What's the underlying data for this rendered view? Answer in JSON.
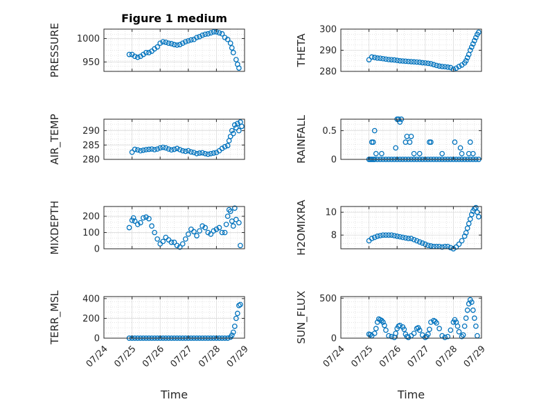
{
  "colors": {
    "marker": "#0072BD",
    "grid": "#d9d9d9",
    "axis": "#262626"
  },
  "chart_data": [
    {
      "type": "scatter",
      "title": "Figure 1 medium",
      "ylabel": "PRESSURE",
      "ylim": [
        930,
        1020
      ],
      "yticks": [
        950,
        1000
      ],
      "xticks": [
        "07/24",
        "07/25",
        "07/26",
        "07/27",
        "07/28",
        "07/29"
      ],
      "xlim": [
        24,
        29
      ],
      "xlabel": "",
      "series": [
        {
          "x": [
            24.9,
            25.0,
            25.1,
            25.2,
            25.3,
            25.4,
            25.5,
            25.6,
            25.7,
            25.8,
            25.9,
            26.0,
            26.1,
            26.2,
            26.3,
            26.4,
            26.5,
            26.6,
            26.7,
            26.8,
            26.9,
            27.0,
            27.1,
            27.2,
            27.3,
            27.4,
            27.5,
            27.6,
            27.7,
            27.8,
            27.9,
            28.0,
            28.1,
            28.2,
            28.3,
            28.4,
            28.5,
            28.55,
            28.6,
            28.7,
            28.75,
            28.8
          ],
          "y": [
            966,
            966,
            962,
            960,
            962,
            966,
            970,
            970,
            973,
            978,
            982,
            990,
            993,
            992,
            990,
            989,
            987,
            986,
            987,
            990,
            993,
            995,
            997,
            998,
            1002,
            1004,
            1007,
            1009,
            1010,
            1012,
            1014,
            1014,
            1012,
            1010,
            1002,
            998,
            990,
            980,
            970,
            955,
            945,
            937
          ]
        }
      ]
    },
    {
      "type": "scatter",
      "title": "",
      "ylabel": "THETA",
      "ylim": [
        280,
        300
      ],
      "yticks": [
        280,
        290,
        300
      ],
      "xticks": [
        "07/24",
        "07/25",
        "07/26",
        "07/27",
        "07/28",
        "07/29"
      ],
      "xlim": [
        24,
        29
      ],
      "xlabel": "",
      "series": [
        {
          "x": [
            25.0,
            25.1,
            25.2,
            25.3,
            25.4,
            25.5,
            25.6,
            25.7,
            25.8,
            25.9,
            26.0,
            26.1,
            26.2,
            26.3,
            26.4,
            26.5,
            26.6,
            26.7,
            26.8,
            26.9,
            27.0,
            27.1,
            27.2,
            27.3,
            27.4,
            27.5,
            27.6,
            27.7,
            27.8,
            27.9,
            28.0,
            28.1,
            28.2,
            28.3,
            28.4,
            28.45,
            28.5,
            28.55,
            28.6,
            28.65,
            28.7,
            28.75,
            28.8,
            28.85,
            28.9
          ],
          "y": [
            285.5,
            286.8,
            286.6,
            286.3,
            286.2,
            286.0,
            285.8,
            285.6,
            285.5,
            285.4,
            285.2,
            285.0,
            284.9,
            284.8,
            284.7,
            284.6,
            284.5,
            284.4,
            284.3,
            284.1,
            284.0,
            283.8,
            283.6,
            283.2,
            282.8,
            282.5,
            282.3,
            282.2,
            282.0,
            281.8,
            281.0,
            281.5,
            282.3,
            283.0,
            284.0,
            285.0,
            286.5,
            288.0,
            290.0,
            291.5,
            293.0,
            294.5,
            296.0,
            297.5,
            298.5
          ]
        }
      ]
    },
    {
      "type": "scatter",
      "title": "",
      "ylabel": "AIR_TEMP",
      "ylim": [
        280,
        294
      ],
      "yticks": [
        280,
        285,
        290
      ],
      "xticks": [
        "07/24",
        "07/25",
        "07/26",
        "07/27",
        "07/28",
        "07/29"
      ],
      "xlim": [
        24,
        29
      ],
      "xlabel": "",
      "series": [
        {
          "x": [
            25.0,
            25.1,
            25.2,
            25.3,
            25.4,
            25.5,
            25.6,
            25.7,
            25.8,
            25.9,
            26.0,
            26.1,
            26.2,
            26.3,
            26.4,
            26.5,
            26.6,
            26.7,
            26.8,
            26.9,
            27.0,
            27.1,
            27.2,
            27.3,
            27.4,
            27.5,
            27.6,
            27.7,
            27.8,
            27.9,
            28.0,
            28.1,
            28.2,
            28.3,
            28.4,
            28.45,
            28.5,
            28.55,
            28.6,
            28.65,
            28.7,
            28.75,
            28.8,
            28.85,
            28.9
          ],
          "y": [
            282.5,
            283.5,
            283.3,
            283.0,
            283.2,
            283.4,
            283.5,
            283.6,
            283.4,
            283.6,
            284.0,
            284.2,
            284.0,
            283.6,
            283.3,
            283.5,
            283.8,
            283.4,
            283.0,
            282.8,
            283.0,
            282.6,
            282.4,
            282.0,
            282.2,
            282.3,
            282.0,
            281.8,
            282.0,
            282.2,
            282.4,
            283.0,
            283.8,
            284.4,
            284.8,
            286.5,
            288.0,
            290.0,
            289.0,
            292.0,
            291.0,
            292.5,
            290.0,
            293.0,
            291.5
          ]
        }
      ]
    },
    {
      "type": "scatter",
      "title": "",
      "ylabel": "RAINFALL",
      "ylim": [
        0,
        0.7
      ],
      "yticks": [
        0,
        0.5
      ],
      "xticks": [
        "07/24",
        "07/25",
        "07/26",
        "07/27",
        "07/28",
        "07/29"
      ],
      "xlim": [
        24,
        29
      ],
      "xlabel": "",
      "series": [
        {
          "x": [
            25.0,
            25.05,
            25.1,
            25.15,
            25.2,
            25.3,
            25.4,
            25.5,
            25.6,
            25.7,
            25.8,
            25.9,
            26.0,
            26.1,
            26.2,
            26.3,
            26.4,
            26.5,
            26.6,
            26.7,
            26.8,
            26.9,
            27.0,
            27.1,
            27.2,
            27.3,
            27.4,
            27.5,
            27.6,
            27.7,
            27.8,
            27.9,
            28.0,
            28.1,
            28.2,
            28.3,
            28.4,
            28.5,
            28.6,
            28.7,
            28.8,
            28.9,
            25.1,
            25.15,
            25.2,
            25.25,
            25.45,
            25.95,
            26.0,
            26.05,
            26.1,
            26.15,
            26.3,
            26.35,
            26.45,
            26.5,
            26.6,
            26.8,
            27.15,
            27.2,
            27.6,
            28.05,
            28.25,
            28.3,
            28.55,
            28.6,
            28.7
          ],
          "y": [
            0,
            0,
            0,
            0,
            0,
            0,
            0,
            0,
            0,
            0,
            0,
            0,
            0,
            0,
            0,
            0,
            0,
            0,
            0,
            0,
            0,
            0,
            0,
            0,
            0,
            0,
            0,
            0,
            0,
            0,
            0,
            0,
            0,
            0,
            0,
            0,
            0,
            0,
            0,
            0,
            0,
            0,
            0.3,
            0.3,
            0.5,
            0.1,
            0.1,
            0.2,
            0.7,
            0.7,
            0.65,
            0.7,
            0.3,
            0.4,
            0.3,
            0.4,
            0.1,
            0.1,
            0.3,
            0.3,
            0.1,
            0.3,
            0.2,
            0.1,
            0.1,
            0.3,
            0.1
          ]
        }
      ]
    },
    {
      "type": "scatter",
      "title": "",
      "ylabel": "MIXDEPTH",
      "ylim": [
        0,
        260
      ],
      "yticks": [
        0,
        100,
        200
      ],
      "xticks": [
        "07/24",
        "07/25",
        "07/26",
        "07/27",
        "07/28",
        "07/29"
      ],
      "xlim": [
        24,
        29
      ],
      "xlabel": "",
      "series": [
        {
          "x": [
            24.9,
            25.0,
            25.05,
            25.1,
            25.2,
            25.3,
            25.4,
            25.5,
            25.6,
            25.7,
            25.8,
            25.9,
            26.0,
            26.1,
            26.2,
            26.3,
            26.4,
            26.5,
            26.6,
            26.7,
            26.8,
            26.9,
            27.0,
            27.1,
            27.2,
            27.3,
            27.4,
            27.5,
            27.6,
            27.7,
            27.8,
            27.9,
            28.0,
            28.1,
            28.2,
            28.3,
            28.35,
            28.4,
            28.45,
            28.5,
            28.55,
            28.6,
            28.65,
            28.7,
            28.8,
            28.85
          ],
          "y": [
            130,
            175,
            190,
            170,
            150,
            160,
            190,
            195,
            185,
            140,
            100,
            60,
            30,
            45,
            70,
            55,
            40,
            40,
            20,
            10,
            30,
            60,
            90,
            120,
            105,
            80,
            110,
            140,
            130,
            100,
            90,
            110,
            120,
            130,
            100,
            100,
            150,
            200,
            240,
            230,
            170,
            140,
            250,
            180,
            160,
            20
          ]
        }
      ]
    },
    {
      "type": "scatter",
      "title": "",
      "ylabel": "H2OMIXRA",
      "ylim": [
        6.8,
        10.5
      ],
      "yticks": [
        8,
        10
      ],
      "xticks": [
        "07/24",
        "07/25",
        "07/26",
        "07/27",
        "07/28",
        "07/29"
      ],
      "xlim": [
        24,
        29
      ],
      "xlabel": "",
      "series": [
        {
          "x": [
            25.0,
            25.1,
            25.2,
            25.3,
            25.4,
            25.5,
            25.6,
            25.7,
            25.8,
            25.9,
            26.0,
            26.1,
            26.2,
            26.3,
            26.4,
            26.5,
            26.6,
            26.7,
            26.8,
            26.9,
            27.0,
            27.1,
            27.2,
            27.3,
            27.4,
            27.5,
            27.6,
            27.7,
            27.8,
            27.9,
            28.0,
            28.1,
            28.2,
            28.3,
            28.4,
            28.45,
            28.5,
            28.55,
            28.6,
            28.65,
            28.7,
            28.75,
            28.8,
            28.85,
            28.9
          ],
          "y": [
            7.5,
            7.7,
            7.8,
            7.9,
            7.95,
            8.0,
            8.0,
            8.0,
            8.0,
            7.95,
            7.9,
            7.85,
            7.8,
            7.75,
            7.7,
            7.7,
            7.6,
            7.5,
            7.4,
            7.3,
            7.2,
            7.1,
            7.05,
            7.0,
            7.0,
            7.0,
            6.95,
            7.0,
            7.0,
            6.9,
            6.8,
            6.95,
            7.2,
            7.5,
            7.9,
            8.2,
            8.6,
            9.0,
            9.4,
            9.8,
            10.1,
            10.3,
            10.4,
            10.0,
            9.6
          ]
        }
      ]
    },
    {
      "type": "scatter",
      "title": "",
      "ylabel": "TERR_MSL",
      "ylim": [
        0,
        420
      ],
      "yticks": [
        0,
        200,
        400
      ],
      "xticks": [
        "07/24",
        "07/25",
        "07/26",
        "07/27",
        "07/28",
        "07/29"
      ],
      "xlim": [
        24,
        29
      ],
      "xlabel": "Time",
      "series": [
        {
          "x": [
            24.9,
            25.0,
            25.1,
            25.2,
            25.3,
            25.4,
            25.5,
            25.6,
            25.7,
            25.8,
            25.9,
            26.0,
            26.1,
            26.2,
            26.3,
            26.4,
            26.5,
            26.6,
            26.7,
            26.8,
            26.9,
            27.0,
            27.1,
            27.2,
            27.3,
            27.4,
            27.5,
            27.6,
            27.7,
            27.8,
            27.9,
            28.0,
            28.1,
            28.2,
            28.3,
            28.4,
            28.5,
            28.55,
            28.6,
            28.65,
            28.7,
            28.75,
            28.8,
            28.85
          ],
          "y": [
            0,
            0,
            0,
            0,
            0,
            0,
            0,
            0,
            0,
            0,
            0,
            0,
            0,
            0,
            0,
            0,
            0,
            0,
            0,
            0,
            0,
            0,
            0,
            0,
            0,
            0,
            0,
            0,
            0,
            0,
            0,
            0,
            0,
            0,
            0,
            0,
            10,
            30,
            60,
            120,
            200,
            250,
            330,
            340
          ]
        }
      ]
    },
    {
      "type": "scatter",
      "title": "",
      "ylabel": "SUN_FLUX",
      "ylim": [
        0,
        520
      ],
      "yticks": [
        0,
        500
      ],
      "xticks": [
        "07/24",
        "07/25",
        "07/26",
        "07/27",
        "07/28",
        "07/29"
      ],
      "xlim": [
        24,
        29
      ],
      "xlabel": "Time",
      "series": [
        {
          "x": [
            25.0,
            25.05,
            25.1,
            25.2,
            25.25,
            25.3,
            25.35,
            25.4,
            25.45,
            25.5,
            25.55,
            25.6,
            25.7,
            25.8,
            25.9,
            25.95,
            26.0,
            26.05,
            26.1,
            26.2,
            26.25,
            26.3,
            26.35,
            26.4,
            26.5,
            26.6,
            26.7,
            26.75,
            26.8,
            26.9,
            27.0,
            27.05,
            27.1,
            27.15,
            27.2,
            27.3,
            27.35,
            27.4,
            27.5,
            27.6,
            27.7,
            27.8,
            27.9,
            28.0,
            28.05,
            28.1,
            28.15,
            28.2,
            28.3,
            28.35,
            28.4,
            28.45,
            28.5,
            28.55,
            28.6,
            28.65,
            28.7,
            28.75,
            28.8,
            28.85
          ],
          "y": [
            50,
            45,
            30,
            60,
            120,
            200,
            240,
            230,
            220,
            200,
            160,
            100,
            30,
            20,
            10,
            60,
            120,
            150,
            160,
            140,
            110,
            50,
            20,
            10,
            30,
            60,
            120,
            130,
            100,
            40,
            10,
            20,
            50,
            110,
            200,
            220,
            210,
            190,
            120,
            30,
            10,
            20,
            100,
            200,
            230,
            200,
            150,
            80,
            20,
            40,
            150,
            250,
            350,
            430,
            480,
            450,
            350,
            250,
            150,
            30
          ]
        }
      ]
    }
  ]
}
